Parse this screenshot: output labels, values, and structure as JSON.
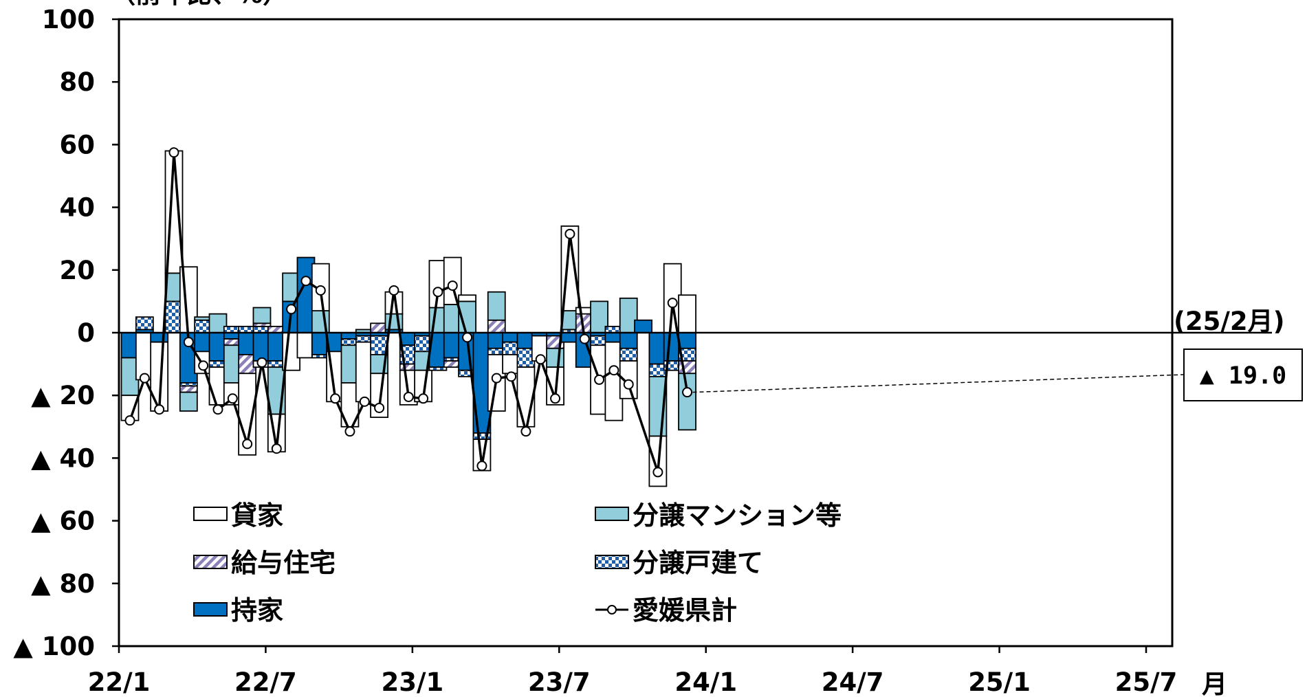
{
  "chart_data": {
    "type": "bar",
    "subtype": "stacked-bar-with-line",
    "unit_label": "（前年比、%）",
    "month_label": "月",
    "ylim": [
      -100,
      100
    ],
    "yticks": [
      {
        "value": 100,
        "label": "100"
      },
      {
        "value": 80,
        "label": "80"
      },
      {
        "value": 60,
        "label": "60"
      },
      {
        "value": 40,
        "label": "40"
      },
      {
        "value": 20,
        "label": "20"
      },
      {
        "value": 0,
        "label": "0"
      },
      {
        "value": -20,
        "label": "▲ 20"
      },
      {
        "value": -40,
        "label": "▲ 40"
      },
      {
        "value": -60,
        "label": "▲ 60"
      },
      {
        "value": -80,
        "label": "▲ 80"
      },
      {
        "value": -100,
        "label": "▲ 100"
      }
    ],
    "xticks": [
      {
        "index": 0,
        "label": "22/1"
      },
      {
        "index": 6,
        "label": "22/7"
      },
      {
        "index": 12,
        "label": "23/1"
      },
      {
        "index": 18,
        "label": "23/7"
      },
      {
        "index": 24,
        "label": "24/1"
      },
      {
        "index": 30,
        "label": "24/7"
      },
      {
        "index": 36,
        "label": "25/1"
      },
      {
        "index": 42,
        "label": "25/7"
      }
    ],
    "x_slots": 43,
    "grid": false,
    "legend": {
      "placement": "bottom-left",
      "items": [
        {
          "key": "rental",
          "label": "貸家"
        },
        {
          "key": "condo",
          "label": "分譲マンション等"
        },
        {
          "key": "company",
          "label": "給与住宅"
        },
        {
          "key": "detached",
          "label": "分譲戸建て"
        },
        {
          "key": "owner",
          "label": "持家"
        },
        {
          "key": "total",
          "label": "愛媛県計"
        }
      ]
    },
    "series_colors": {
      "owner": "#0070c0",
      "detached": "#1f5ea8",
      "company": "#8b80b8",
      "condo": "#92cddc",
      "rental": "#ffffff",
      "total_line": "#000000"
    },
    "series": [
      {
        "key": "owner",
        "name": "持家",
        "values": [
          -8,
          1,
          -3,
          0,
          -16,
          -6,
          -9,
          -2,
          -7,
          -9,
          -9,
          10,
          24,
          -7,
          -6,
          -2,
          -1,
          -1,
          1,
          -4,
          -1,
          -11,
          -8,
          -12,
          -32,
          -5,
          -3,
          -5,
          -1,
          -1,
          -3,
          -11,
          -1,
          -3,
          -5,
          4,
          -10,
          -9,
          -5
        ]
      },
      {
        "key": "detached",
        "name": "分譲戸建て",
        "values": [
          0,
          4,
          0,
          10,
          -1,
          4,
          -2,
          2,
          2,
          2,
          -2,
          0,
          0,
          -1,
          0,
          -2,
          -2,
          -6,
          0,
          -6,
          -5,
          -1,
          -1,
          -2,
          -2,
          -2,
          -4,
          -6,
          0,
          0,
          1,
          0,
          -3,
          2,
          -4,
          0,
          -4,
          -3,
          -4
        ]
      },
      {
        "key": "company",
        "name": "給与住宅",
        "values": [
          0,
          0,
          0,
          0,
          -2,
          0,
          0,
          -2,
          -6,
          1,
          2,
          0,
          0,
          0,
          0,
          0,
          0,
          3,
          0,
          -2,
          0,
          0,
          -2,
          0,
          0,
          4,
          0,
          0,
          0,
          -4,
          0,
          6,
          0,
          0,
          0,
          0,
          0,
          0,
          -4
        ]
      },
      {
        "key": "condo",
        "name": "分譲マンション等",
        "values": [
          -12,
          0,
          0,
          9,
          -6,
          1,
          6,
          -12,
          0,
          5,
          -15,
          9,
          0,
          7,
          0,
          -12,
          1,
          -6,
          5,
          0,
          -6,
          8,
          9,
          10,
          0,
          9,
          0,
          0,
          0,
          -6,
          6,
          0,
          10,
          0,
          11,
          0,
          -19,
          0,
          -18
        ]
      },
      {
        "key": "rental",
        "name": "貸家",
        "values": [
          -8,
          -15,
          -22,
          39,
          21,
          -7,
          -12,
          -7,
          -26,
          -2,
          -12,
          -12,
          -8,
          15,
          -16,
          -14,
          -19,
          -14,
          7,
          -11,
          -10,
          15,
          15,
          2,
          -10,
          -18,
          -6,
          -19,
          -8,
          -12,
          27,
          2,
          -22,
          -25,
          -12,
          0,
          -16,
          22,
          12
        ]
      },
      {
        "key": "total",
        "name": "愛媛県計",
        "line": true,
        "values": [
          -28,
          -14.5,
          -24.5,
          57.5,
          -3,
          -10.5,
          -24.5,
          -21,
          -35.5,
          -9.5,
          -37,
          7.5,
          16.5,
          13.5,
          -21,
          -31.5,
          -22,
          -24,
          13.5,
          -20.5,
          -21,
          13,
          15,
          -1.5,
          -42.5,
          -14.5,
          -14,
          -31.5,
          -8.5,
          -21,
          31.5,
          -2,
          -15,
          -12,
          -16.5,
          null,
          -44.5,
          9.5,
          -19
        ]
      }
    ],
    "annotation": {
      "label": "(25/2月)",
      "value_text": "▲ 19.0",
      "point_index": 38
    }
  }
}
